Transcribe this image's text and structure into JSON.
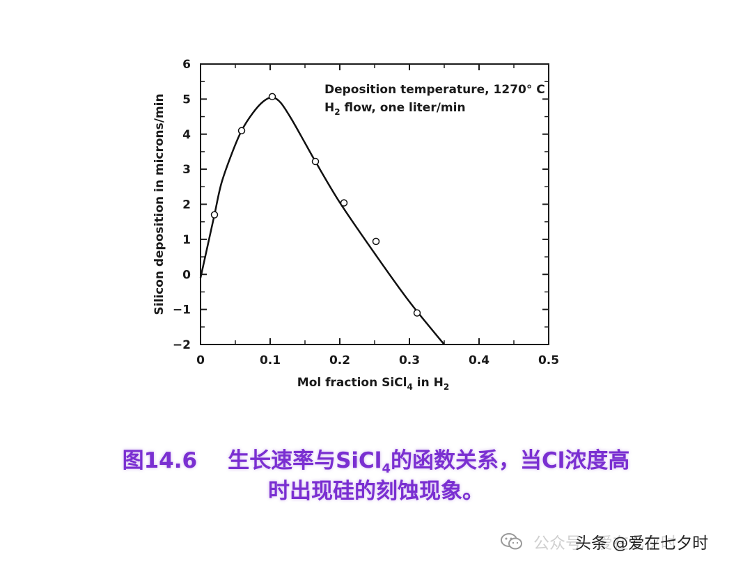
{
  "chart_data": {
    "type": "line",
    "xlabel_parts": [
      "Mol fraction SiCl",
      "4",
      " in H",
      "2"
    ],
    "ylabel": "Silicon deposition in microns/min",
    "xlim": [
      0,
      0.5
    ],
    "ylim": [
      -2,
      6
    ],
    "xticks": [
      "0",
      "0.1",
      "0.2",
      "0.3",
      "0.4",
      "0.5"
    ],
    "yticks": [
      "6",
      "5",
      "4",
      "3",
      "2",
      "1",
      "0",
      "−1",
      "−2"
    ],
    "xtick_values": [
      0,
      0.1,
      0.2,
      0.3,
      0.4,
      0.5
    ],
    "ytick_values": [
      6,
      5,
      4,
      3,
      2,
      1,
      0,
      -1,
      -2
    ],
    "grid": false,
    "annotations": [
      {
        "text": "Deposition temperature, 1270° C"
      },
      {
        "parts": [
          "H",
          "2",
          " flow, one liter/min"
        ]
      }
    ],
    "points": [
      {
        "x": 0.02,
        "y": 1.7
      },
      {
        "x": 0.059,
        "y": 4.1
      },
      {
        "x": 0.103,
        "y": 5.07
      },
      {
        "x": 0.165,
        "y": 3.22
      },
      {
        "x": 0.206,
        "y": 2.04
      },
      {
        "x": 0.252,
        "y": 0.94
      },
      {
        "x": 0.311,
        "y": -1.1
      }
    ],
    "curve": [
      {
        "x": 0.0,
        "y": -0.1
      },
      {
        "x": 0.01,
        "y": 0.8
      },
      {
        "x": 0.02,
        "y": 1.7
      },
      {
        "x": 0.03,
        "y": 2.6
      },
      {
        "x": 0.045,
        "y": 3.45
      },
      {
        "x": 0.059,
        "y": 4.1
      },
      {
        "x": 0.075,
        "y": 4.6
      },
      {
        "x": 0.09,
        "y": 4.93
      },
      {
        "x": 0.103,
        "y": 5.05
      },
      {
        "x": 0.115,
        "y": 4.9
      },
      {
        "x": 0.13,
        "y": 4.45
      },
      {
        "x": 0.15,
        "y": 3.75
      },
      {
        "x": 0.165,
        "y": 3.22
      },
      {
        "x": 0.2,
        "y": 2.05
      },
      {
        "x": 0.25,
        "y": 0.6
      },
      {
        "x": 0.3,
        "y": -0.78
      },
      {
        "x": 0.35,
        "y": -2.0
      }
    ]
  },
  "caption": {
    "fig_no": "图14.6",
    "line1_a": "生长速率与SiCl",
    "line1_sub": "4",
    "line1_b": "的函数关系，当Cl浓度高",
    "line2": "时出现硅的刻蚀现象。"
  },
  "watermark": {
    "faded": "公众号 · 爱在七夕时",
    "text": "头条 @爱在七夕时"
  }
}
